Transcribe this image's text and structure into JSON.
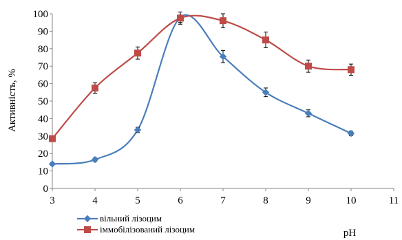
{
  "chart_data": {
    "type": "line",
    "title": "",
    "xlabel": "pH",
    "ylabel": "Активність, %",
    "xlim": [
      3,
      11
    ],
    "ylim": [
      0,
      100
    ],
    "x_ticks": [
      3,
      4,
      5,
      6,
      7,
      8,
      9,
      10,
      11
    ],
    "y_ticks": [
      0,
      10,
      20,
      30,
      40,
      50,
      60,
      70,
      80,
      90,
      100
    ],
    "grid": false,
    "legend_position": "bottom-left",
    "smooth": true,
    "series": [
      {
        "name": "вільний лізоцим",
        "color": "#4a7ebb",
        "marker": "diamond",
        "x": [
          3,
          4,
          5,
          6,
          7,
          8,
          9,
          10
        ],
        "y": [
          14,
          16.5,
          33.5,
          98,
          75.5,
          55,
          43,
          31.5
        ],
        "error": [
          0.8,
          1,
          1.5,
          3,
          3.5,
          2.5,
          2,
          1.3
        ]
      },
      {
        "name": "іммобілізований лізоцим",
        "color": "#be4b48",
        "marker": "square",
        "x": [
          3,
          4,
          5,
          6,
          7,
          8,
          9,
          10
        ],
        "y": [
          28.5,
          57.5,
          77.5,
          97.5,
          96,
          85,
          70,
          68
        ],
        "error": [
          1,
          3,
          3.5,
          3.5,
          4,
          4.5,
          3.5,
          3.2
        ]
      }
    ]
  }
}
